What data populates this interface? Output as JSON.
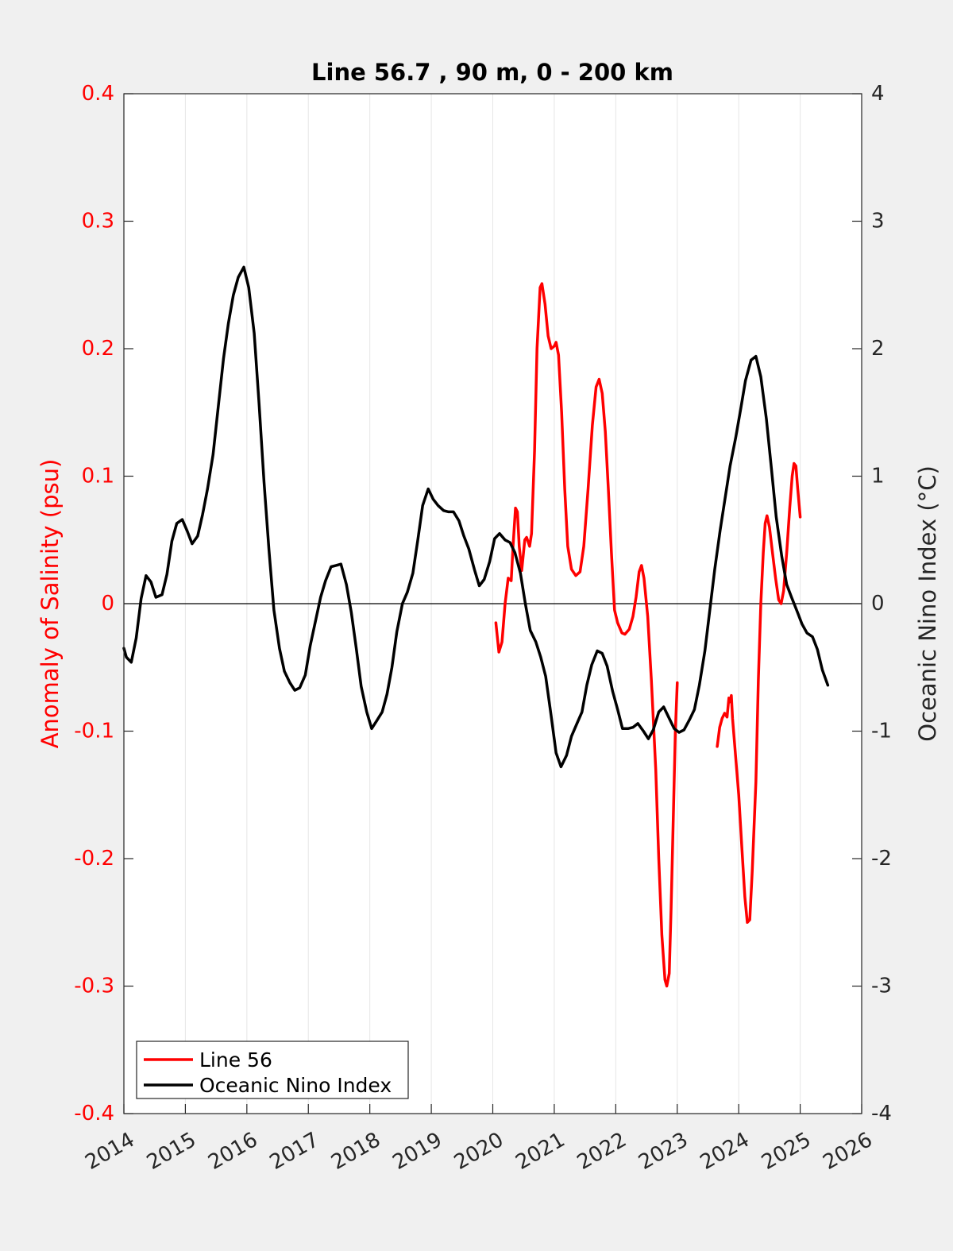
{
  "chart_data": {
    "type": "line",
    "title": "Line 56.7 , 90 m, 0 - 200 km",
    "xlabel": "",
    "xlim": [
      2014,
      2026
    ],
    "xticks": [
      "2014",
      "2015",
      "2016",
      "2017",
      "2018",
      "2019",
      "2020",
      "2021",
      "2022",
      "2023",
      "2024",
      "2025",
      "2026"
    ],
    "grid_x": true,
    "left_axis": {
      "label": "Anomaly of Salinity (psu)",
      "ylim": [
        -0.4,
        0.4
      ],
      "ticks": [
        "-0.4",
        "-0.3",
        "-0.2",
        "-0.1",
        "0",
        "0.1",
        "0.2",
        "0.3",
        "0.4"
      ],
      "color": "#ff0000"
    },
    "right_axis": {
      "label": "Oceanic Nino Index (°C)",
      "ylim": [
        -4,
        4
      ],
      "ticks": [
        "-4",
        "-3",
        "-2",
        "-1",
        "0",
        "1",
        "2",
        "3",
        "4"
      ],
      "color": "#000000"
    },
    "legend": {
      "placement": "bottom-left",
      "entries": [
        "Line 56",
        "Oceanic Nino Index"
      ]
    },
    "series": [
      {
        "name": "Line 56",
        "axis": "left",
        "color": "#ff0000",
        "segments": [
          [
            [
              2020.05,
              -0.015
            ],
            [
              2020.1,
              -0.038
            ],
            [
              2020.15,
              -0.03
            ],
            [
              2020.2,
              0.0
            ],
            [
              2020.25,
              0.02
            ],
            [
              2020.3,
              0.018
            ],
            [
              2020.33,
              0.045
            ],
            [
              2020.37,
              0.075
            ],
            [
              2020.4,
              0.072
            ],
            [
              2020.43,
              0.045
            ],
            [
              2020.47,
              0.026
            ],
            [
              2020.52,
              0.05
            ],
            [
              2020.55,
              0.052
            ],
            [
              2020.6,
              0.045
            ],
            [
              2020.63,
              0.055
            ],
            [
              2020.68,
              0.12
            ],
            [
              2020.72,
              0.2
            ],
            [
              2020.77,
              0.248
            ],
            [
              2020.8,
              0.251
            ],
            [
              2020.85,
              0.235
            ],
            [
              2020.9,
              0.21
            ],
            [
              2020.95,
              0.2
            ],
            [
              2021.0,
              0.202
            ],
            [
              2021.03,
              0.205
            ],
            [
              2021.07,
              0.195
            ],
            [
              2021.12,
              0.15
            ],
            [
              2021.17,
              0.09
            ],
            [
              2021.22,
              0.045
            ],
            [
              2021.28,
              0.027
            ],
            [
              2021.35,
              0.022
            ],
            [
              2021.42,
              0.025
            ],
            [
              2021.48,
              0.045
            ],
            [
              2021.55,
              0.09
            ],
            [
              2021.62,
              0.14
            ],
            [
              2021.68,
              0.17
            ],
            [
              2021.73,
              0.176
            ],
            [
              2021.78,
              0.165
            ],
            [
              2021.83,
              0.135
            ],
            [
              2021.88,
              0.09
            ],
            [
              2021.93,
              0.04
            ],
            [
              2021.98,
              -0.005
            ],
            [
              2022.03,
              -0.015
            ],
            [
              2022.1,
              -0.023
            ],
            [
              2022.15,
              -0.024
            ],
            [
              2022.22,
              -0.02
            ],
            [
              2022.28,
              -0.01
            ],
            [
              2022.33,
              0.005
            ],
            [
              2022.38,
              0.025
            ],
            [
              2022.42,
              0.03
            ],
            [
              2022.46,
              0.02
            ],
            [
              2022.52,
              -0.01
            ],
            [
              2022.58,
              -0.06
            ],
            [
              2022.65,
              -0.13
            ],
            [
              2022.7,
              -0.2
            ],
            [
              2022.75,
              -0.26
            ],
            [
              2022.8,
              -0.295
            ],
            [
              2022.83,
              -0.3
            ],
            [
              2022.87,
              -0.29
            ],
            [
              2022.9,
              -0.24
            ],
            [
              2022.94,
              -0.16
            ],
            [
              2022.97,
              -0.1
            ],
            [
              2023.0,
              -0.062
            ]
          ],
          [
            [
              2023.65,
              -0.112
            ],
            [
              2023.69,
              -0.097
            ],
            [
              2023.73,
              -0.09
            ],
            [
              2023.77,
              -0.086
            ],
            [
              2023.81,
              -0.089
            ],
            [
              2023.84,
              -0.074
            ],
            [
              2023.86,
              -0.077
            ],
            [
              2023.88,
              -0.072
            ],
            [
              2023.9,
              -0.09
            ],
            [
              2023.95,
              -0.12
            ],
            [
              2024.0,
              -0.15
            ],
            [
              2024.05,
              -0.19
            ],
            [
              2024.1,
              -0.23
            ],
            [
              2024.14,
              -0.25
            ],
            [
              2024.18,
              -0.248
            ],
            [
              2024.22,
              -0.21
            ],
            [
              2024.28,
              -0.14
            ],
            [
              2024.32,
              -0.06
            ],
            [
              2024.36,
              0.0
            ],
            [
              2024.4,
              0.04
            ],
            [
              2024.43,
              0.063
            ],
            [
              2024.46,
              0.069
            ],
            [
              2024.5,
              0.06
            ],
            [
              2024.55,
              0.04
            ],
            [
              2024.6,
              0.02
            ],
            [
              2024.65,
              0.003
            ],
            [
              2024.69,
              0.0
            ],
            [
              2024.73,
              0.01
            ],
            [
              2024.78,
              0.04
            ],
            [
              2024.83,
              0.075
            ],
            [
              2024.87,
              0.1
            ],
            [
              2024.9,
              0.11
            ],
            [
              2024.93,
              0.108
            ],
            [
              2024.96,
              0.09
            ],
            [
              2025.0,
              0.068
            ]
          ]
        ]
      },
      {
        "name": "Oceanic Nino Index",
        "axis": "right",
        "color": "#000000",
        "points": [
          [
            2014.0,
            -0.35
          ],
          [
            2014.04,
            -0.42
          ],
          [
            2014.12,
            -0.46
          ],
          [
            2014.2,
            -0.27
          ],
          [
            2014.28,
            0.04
          ],
          [
            2014.36,
            0.22
          ],
          [
            2014.44,
            0.17
          ],
          [
            2014.52,
            0.05
          ],
          [
            2014.62,
            0.07
          ],
          [
            2014.7,
            0.23
          ],
          [
            2014.78,
            0.49
          ],
          [
            2014.86,
            0.63
          ],
          [
            2014.95,
            0.66
          ],
          [
            2015.03,
            0.57
          ],
          [
            2015.11,
            0.47
          ],
          [
            2015.2,
            0.53
          ],
          [
            2015.28,
            0.7
          ],
          [
            2015.36,
            0.9
          ],
          [
            2015.45,
            1.17
          ],
          [
            2015.53,
            1.52
          ],
          [
            2015.62,
            1.92
          ],
          [
            2015.7,
            2.2
          ],
          [
            2015.78,
            2.42
          ],
          [
            2015.86,
            2.56
          ],
          [
            2015.95,
            2.64
          ],
          [
            2016.03,
            2.48
          ],
          [
            2016.12,
            2.12
          ],
          [
            2016.2,
            1.56
          ],
          [
            2016.28,
            0.95
          ],
          [
            2016.36,
            0.42
          ],
          [
            2016.44,
            -0.05
          ],
          [
            2016.53,
            -0.35
          ],
          [
            2016.61,
            -0.53
          ],
          [
            2016.7,
            -0.62
          ],
          [
            2016.78,
            -0.68
          ],
          [
            2016.86,
            -0.66
          ],
          [
            2016.95,
            -0.56
          ],
          [
            2017.03,
            -0.33
          ],
          [
            2017.11,
            -0.15
          ],
          [
            2017.2,
            0.05
          ],
          [
            2017.28,
            0.18
          ],
          [
            2017.37,
            0.29
          ],
          [
            2017.45,
            0.3
          ],
          [
            2017.53,
            0.31
          ],
          [
            2017.62,
            0.15
          ],
          [
            2017.7,
            -0.07
          ],
          [
            2017.78,
            -0.35
          ],
          [
            2017.86,
            -0.65
          ],
          [
            2017.95,
            -0.85
          ],
          [
            2018.03,
            -0.98
          ],
          [
            2018.11,
            -0.92
          ],
          [
            2018.2,
            -0.85
          ],
          [
            2018.28,
            -0.71
          ],
          [
            2018.36,
            -0.5
          ],
          [
            2018.44,
            -0.22
          ],
          [
            2018.53,
            0.0
          ],
          [
            2018.61,
            0.09
          ],
          [
            2018.7,
            0.24
          ],
          [
            2018.78,
            0.5
          ],
          [
            2018.86,
            0.77
          ],
          [
            2018.95,
            0.9
          ],
          [
            2019.03,
            0.82
          ],
          [
            2019.11,
            0.77
          ],
          [
            2019.2,
            0.73
          ],
          [
            2019.28,
            0.72
          ],
          [
            2019.36,
            0.72
          ],
          [
            2019.45,
            0.65
          ],
          [
            2019.53,
            0.53
          ],
          [
            2019.61,
            0.43
          ],
          [
            2019.7,
            0.27
          ],
          [
            2019.78,
            0.14
          ],
          [
            2019.86,
            0.19
          ],
          [
            2019.95,
            0.33
          ],
          [
            2020.03,
            0.51
          ],
          [
            2020.11,
            0.55
          ],
          [
            2020.2,
            0.5
          ],
          [
            2020.28,
            0.48
          ],
          [
            2020.36,
            0.4
          ],
          [
            2020.45,
            0.24
          ],
          [
            2020.53,
            0.0
          ],
          [
            2020.61,
            -0.21
          ],
          [
            2020.7,
            -0.3
          ],
          [
            2020.78,
            -0.42
          ],
          [
            2020.86,
            -0.57
          ],
          [
            2020.95,
            -0.88
          ],
          [
            2021.03,
            -1.17
          ],
          [
            2021.11,
            -1.28
          ],
          [
            2021.2,
            -1.19
          ],
          [
            2021.28,
            -1.04
          ],
          [
            2021.36,
            -0.95
          ],
          [
            2021.45,
            -0.85
          ],
          [
            2021.53,
            -0.64
          ],
          [
            2021.61,
            -0.48
          ],
          [
            2021.7,
            -0.37
          ],
          [
            2021.78,
            -0.39
          ],
          [
            2021.86,
            -0.49
          ],
          [
            2021.95,
            -0.69
          ],
          [
            2022.03,
            -0.83
          ],
          [
            2022.11,
            -0.98
          ],
          [
            2022.2,
            -0.98
          ],
          [
            2022.28,
            -0.97
          ],
          [
            2022.36,
            -0.94
          ],
          [
            2022.45,
            -1.0
          ],
          [
            2022.53,
            -1.06
          ],
          [
            2022.61,
            -0.99
          ],
          [
            2022.7,
            -0.85
          ],
          [
            2022.78,
            -0.81
          ],
          [
            2022.86,
            -0.89
          ],
          [
            2022.95,
            -0.98
          ],
          [
            2023.03,
            -1.01
          ],
          [
            2023.11,
            -0.99
          ],
          [
            2023.2,
            -0.91
          ],
          [
            2023.28,
            -0.83
          ],
          [
            2023.36,
            -0.64
          ],
          [
            2023.45,
            -0.37
          ],
          [
            2023.53,
            -0.05
          ],
          [
            2023.61,
            0.27
          ],
          [
            2023.7,
            0.58
          ],
          [
            2023.78,
            0.83
          ],
          [
            2023.86,
            1.08
          ],
          [
            2023.95,
            1.3
          ],
          [
            2024.03,
            1.52
          ],
          [
            2024.11,
            1.75
          ],
          [
            2024.2,
            1.91
          ],
          [
            2024.28,
            1.94
          ],
          [
            2024.36,
            1.78
          ],
          [
            2024.45,
            1.45
          ],
          [
            2024.53,
            1.07
          ],
          [
            2024.61,
            0.68
          ],
          [
            2024.7,
            0.37
          ],
          [
            2024.78,
            0.15
          ],
          [
            2024.86,
            0.05
          ],
          [
            2024.95,
            -0.06
          ],
          [
            2025.03,
            -0.16
          ],
          [
            2025.11,
            -0.23
          ],
          [
            2025.2,
            -0.26
          ],
          [
            2025.28,
            -0.36
          ],
          [
            2025.36,
            -0.52
          ],
          [
            2025.45,
            -0.64
          ]
        ]
      }
    ]
  }
}
